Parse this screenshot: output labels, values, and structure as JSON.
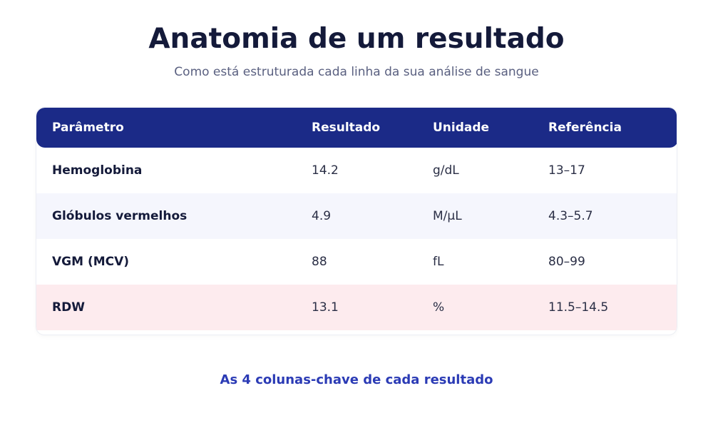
{
  "header": {
    "title": "Anatomia de um resultado",
    "subtitle": "Como está estruturada cada linha da sua análise de sangue"
  },
  "table": {
    "columns": [
      "Parâmetro",
      "Resultado",
      "Unidade",
      "Referência"
    ],
    "rows": [
      [
        "Hemoglobina",
        "14.2",
        "g/dL",
        "13–17"
      ],
      [
        "Glóbulos vermelhos",
        "4.9",
        "M/µL",
        "4.3–5.7"
      ],
      [
        "VGM (MCV)",
        "88",
        "fL",
        "80–99"
      ],
      [
        "RDW",
        "13.1",
        "%",
        "11.5–14.5"
      ]
    ]
  },
  "caption": "As 4 colunas-chave de cada resultado"
}
